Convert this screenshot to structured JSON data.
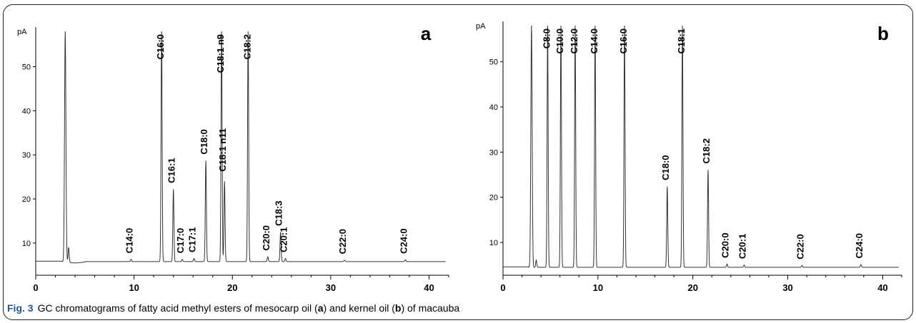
{
  "caption": {
    "fig_label": "Fig. 3",
    "parts": [
      {
        "text": "GC chromatograms of fatty acid methyl esters of mesocarp oil (",
        "bold": false
      },
      {
        "text": "a",
        "bold": true
      },
      {
        "text": ") and kernel oil (",
        "bold": false
      },
      {
        "text": "b",
        "bold": true
      },
      {
        "text": ") of macauba",
        "bold": false
      }
    ]
  },
  "chart_data": [
    {
      "type": "line",
      "panel_label": "a",
      "ylabel": "pA",
      "xlabel": "",
      "xlim": [
        0,
        42
      ],
      "ylim": [
        4,
        58
      ],
      "x_ticks": [
        0,
        10,
        20,
        30,
        40
      ],
      "y_ticks": [
        10,
        20,
        30,
        40,
        50
      ],
      "baseline": 5.8,
      "peaks": [
        {
          "label": "",
          "rt": 3.0,
          "height": 58,
          "solvent": true
        },
        {
          "label": "",
          "rt": 3.35,
          "height": 9.0
        },
        {
          "label": "C14:0",
          "rt": 9.7,
          "height": 6.3
        },
        {
          "label": "C16:0",
          "rt": 12.8,
          "height": 58
        },
        {
          "label": "C16:1",
          "rt": 14.0,
          "height": 22.2
        },
        {
          "label": "C17:0",
          "rt": 14.9,
          "height": 6.3
        },
        {
          "label": "C17:1",
          "rt": 16.1,
          "height": 6.5
        },
        {
          "label": "C18:0",
          "rt": 17.3,
          "height": 28.7
        },
        {
          "label": "C18:1 n9",
          "rt": 18.9,
          "height": 58
        },
        {
          "label": "C18:1 n11",
          "rt": 19.2,
          "height": 24.0
        },
        {
          "label": "C18:2",
          "rt": 21.6,
          "height": 58
        },
        {
          "label": "C20:0",
          "rt": 23.6,
          "height": 6.9
        },
        {
          "label": "C18:3",
          "rt": 24.9,
          "height": 12.5
        },
        {
          "label": "C20:1",
          "rt": 25.4,
          "height": 6.5
        },
        {
          "label": "C22:0",
          "rt": 31.4,
          "height": 6.1
        },
        {
          "label": "C24:0",
          "rt": 37.6,
          "height": 6.2
        }
      ]
    },
    {
      "type": "line",
      "panel_label": "b",
      "ylabel": "pA",
      "xlabel": "",
      "xlim": [
        0,
        42
      ],
      "ylim": [
        4,
        58
      ],
      "x_ticks": [
        0,
        10,
        20,
        30,
        40
      ],
      "y_ticks": [
        10,
        20,
        30,
        40,
        50
      ],
      "baseline": 4.5,
      "peaks": [
        {
          "label": "",
          "rt": 3.0,
          "height": 58,
          "solvent": true
        },
        {
          "label": "",
          "rt": 3.5,
          "height": 6.1
        },
        {
          "label": "C8:0",
          "rt": 4.7,
          "height": 58
        },
        {
          "label": "C10:0",
          "rt": 6.1,
          "height": 58
        },
        {
          "label": "C12:0",
          "rt": 7.6,
          "height": 58
        },
        {
          "label": "C14:0",
          "rt": 9.7,
          "height": 58
        },
        {
          "label": "C16:0",
          "rt": 12.8,
          "height": 58
        },
        {
          "label": "C18:0",
          "rt": 17.3,
          "height": 22.4
        },
        {
          "label": "C18:1",
          "rt": 18.9,
          "height": 58
        },
        {
          "label": "C18:2",
          "rt": 21.6,
          "height": 26.1
        },
        {
          "label": "C20:0",
          "rt": 23.6,
          "height": 5.2
        },
        {
          "label": "C20:1",
          "rt": 25.4,
          "height": 5.0
        },
        {
          "label": "C22:0",
          "rt": 31.5,
          "height": 4.9
        },
        {
          "label": "C24:0",
          "rt": 37.7,
          "height": 5.1
        }
      ]
    }
  ]
}
